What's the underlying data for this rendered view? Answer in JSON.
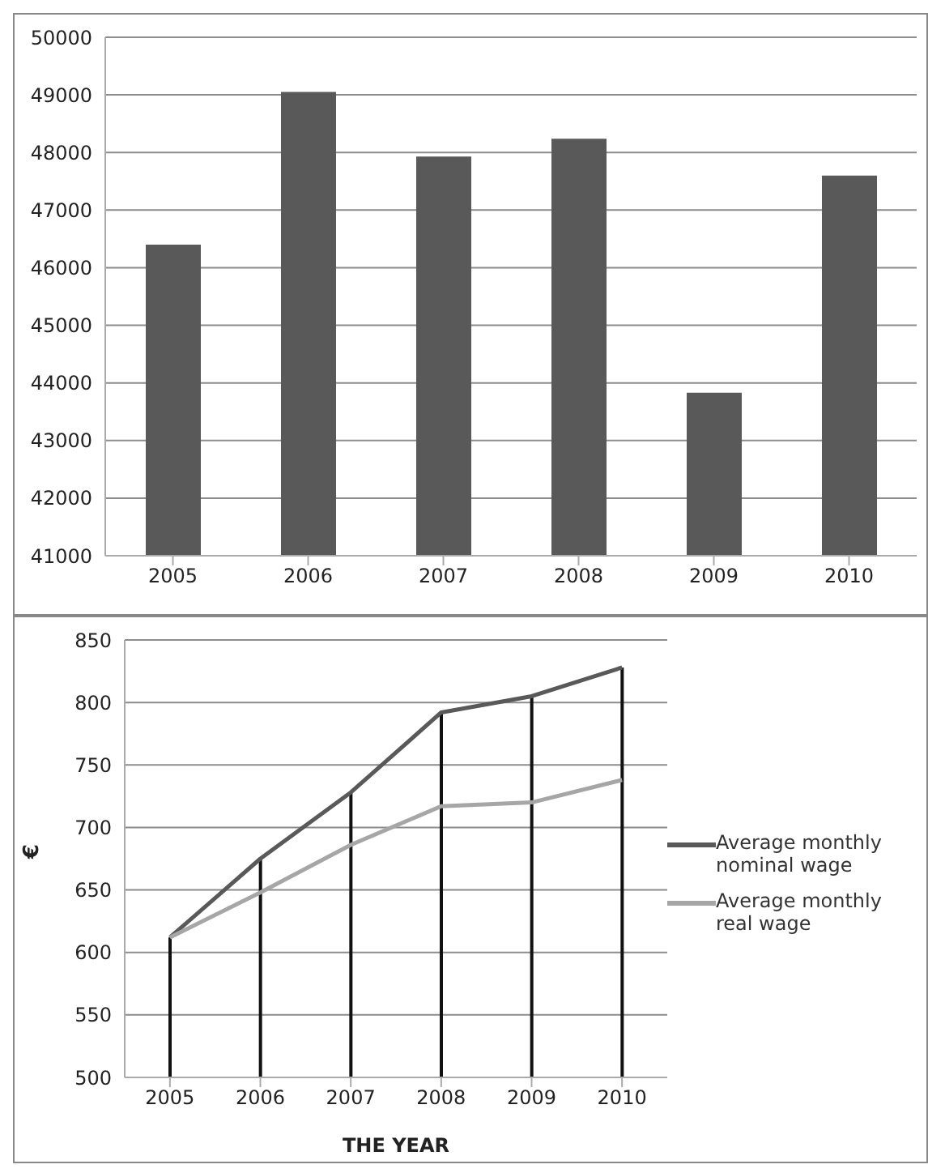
{
  "chart_data": [
    {
      "type": "bar",
      "categories": [
        "2005",
        "2006",
        "2007",
        "2008",
        "2009",
        "2010"
      ],
      "values": [
        46400,
        49050,
        47930,
        48240,
        43830,
        47600
      ],
      "color": "#595959",
      "ylim": [
        41000,
        50000
      ],
      "yticks": [
        41000,
        42000,
        43000,
        44000,
        45000,
        46000,
        47000,
        48000,
        49000,
        50000
      ],
      "grid": "y",
      "legend": false
    },
    {
      "type": "line",
      "categories": [
        "2005",
        "2006",
        "2007",
        "2008",
        "2009",
        "2010"
      ],
      "xlabel": "THE YEAR",
      "ylabel": "€",
      "series": [
        {
          "name": "Average monthly nominal wage",
          "color": "#595959",
          "values": [
            612,
            675,
            728,
            792,
            805,
            828
          ]
        },
        {
          "name": "Average monthly real wage",
          "color": "#a6a6a6",
          "values": [
            612,
            648,
            686,
            717,
            720,
            738
          ]
        },
        {
          "type": "bar",
          "color": "#111111",
          "values": [
            612,
            675,
            728,
            792,
            805,
            828
          ]
        }
      ],
      "ylim": [
        500,
        850
      ],
      "yticks": [
        500,
        550,
        600,
        650,
        700,
        750,
        800,
        850
      ],
      "grid": "y",
      "legend": "right",
      "marker": "none",
      "line_style": "solid"
    }
  ]
}
